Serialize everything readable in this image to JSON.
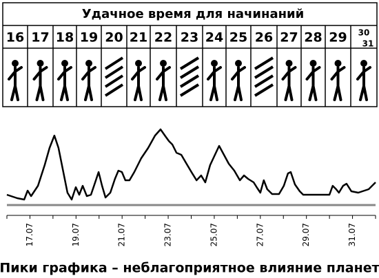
{
  "header": {
    "title": "Удачное время для начинаний",
    "days": [
      {
        "labels": [
          "16"
        ],
        "striped": false
      },
      {
        "labels": [
          "17"
        ],
        "striped": false
      },
      {
        "labels": [
          "18"
        ],
        "striped": false
      },
      {
        "labels": [
          "19"
        ],
        "striped": false
      },
      {
        "labels": [
          "20"
        ],
        "striped": true
      },
      {
        "labels": [
          "21"
        ],
        "striped": false
      },
      {
        "labels": [
          "22"
        ],
        "striped": false
      },
      {
        "labels": [
          "23"
        ],
        "striped": true
      },
      {
        "labels": [
          "24"
        ],
        "striped": false
      },
      {
        "labels": [
          "25"
        ],
        "striped": false
      },
      {
        "labels": [
          "26"
        ],
        "striped": true
      },
      {
        "labels": [
          "27"
        ],
        "striped": false
      },
      {
        "labels": [
          "28"
        ],
        "striped": false
      },
      {
        "labels": [
          "29"
        ],
        "striped": false
      },
      {
        "labels": [
          "30",
          "31"
        ],
        "striped": false
      }
    ]
  },
  "chart_data": {
    "type": "line",
    "color": "#000000",
    "caption": "Пики графика – неблагоприятное влияние планет",
    "x": [
      16.0,
      16.45,
      16.75,
      16.9,
      17.05,
      17.35,
      17.64,
      17.85,
      18.06,
      18.24,
      18.45,
      18.63,
      18.81,
      18.99,
      19.14,
      19.29,
      19.47,
      19.65,
      19.83,
      19.98,
      20.13,
      20.28,
      20.49,
      20.69,
      20.84,
      20.99,
      21.14,
      21.32,
      21.53,
      21.83,
      22.13,
      22.43,
      22.67,
      22.88,
      23.03,
      23.18,
      23.36,
      23.57,
      23.78,
      24.01,
      24.23,
      24.43,
      24.61,
      24.82,
      25.03,
      25.21,
      25.42,
      25.63,
      25.87,
      26.11,
      26.29,
      26.47,
      26.71,
      26.86,
      27.0,
      27.15,
      27.3,
      27.51,
      27.81,
      28.02,
      28.2,
      28.32,
      28.5,
      28.71,
      28.86,
      29.61,
      30.0,
      30.14,
      30.29,
      30.41,
      30.59,
      30.74,
      30.95,
      31.25,
      31.7,
      32.0
    ],
    "values": [
      15,
      10,
      8,
      21,
      13,
      28,
      58,
      83,
      101,
      83,
      48,
      18,
      8,
      26,
      15,
      28,
      13,
      15,
      33,
      48,
      28,
      11,
      18,
      38,
      50,
      48,
      36,
      36,
      48,
      68,
      83,
      101,
      110,
      100,
      93,
      88,
      76,
      73,
      61,
      48,
      36,
      43,
      33,
      58,
      73,
      86,
      73,
      60,
      50,
      36,
      43,
      38,
      33,
      25,
      18,
      36,
      23,
      16,
      16,
      28,
      46,
      48,
      30,
      20,
      15,
      15,
      15,
      28,
      23,
      18,
      28,
      31,
      20,
      18,
      23,
      33
    ],
    "xlim": [
      16,
      32
    ],
    "ylim": [
      0,
      120
    ],
    "xticks": [
      {
        "value": 17,
        "label": "17.07"
      },
      {
        "value": 19,
        "label": "19.07"
      },
      {
        "value": 21,
        "label": "21.07"
      },
      {
        "value": 23,
        "label": "23.07"
      },
      {
        "value": 25,
        "label": "25.07"
      },
      {
        "value": 27,
        "label": "27.07"
      },
      {
        "value": 29,
        "label": "29.07"
      },
      {
        "value": 31,
        "label": "31.07"
      }
    ],
    "xminor": [
      16,
      18,
      20,
      22,
      24,
      26,
      28,
      30,
      32
    ]
  }
}
